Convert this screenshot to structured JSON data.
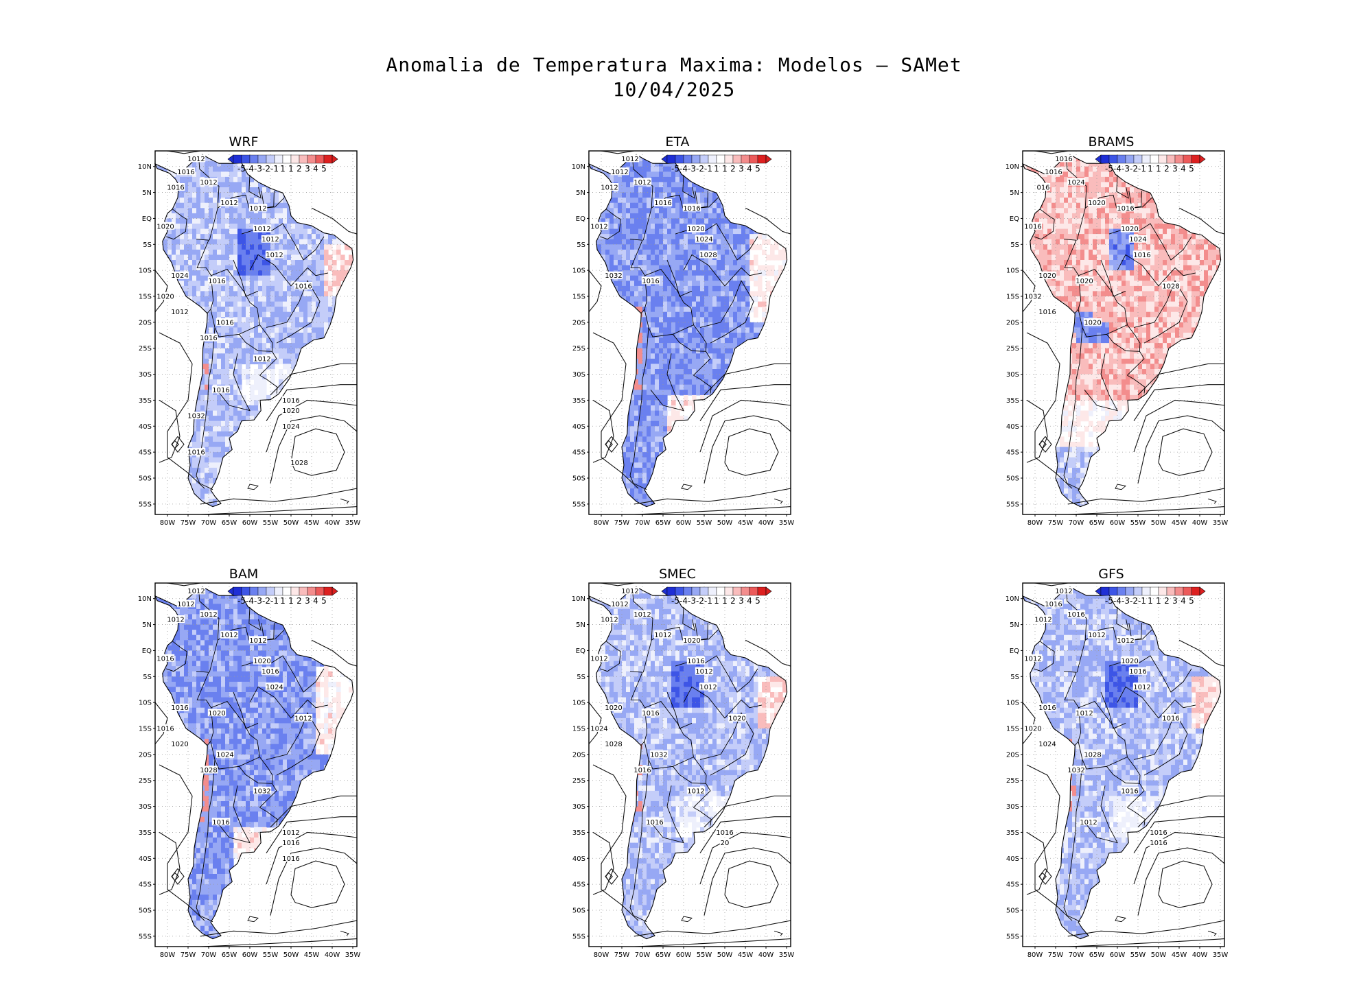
{
  "figure": {
    "title_line1": "Anomalia de Temperatura Maxima: Modelos – SAMet",
    "title_line2": "10/04/2025"
  },
  "axes": {
    "lat_ticks": [
      "10N",
      "5N",
      "EQ",
      "5S",
      "10S",
      "15S",
      "20S",
      "25S",
      "30S",
      "35S",
      "40S",
      "45S",
      "50S",
      "55S"
    ],
    "lon_ticks": [
      "80W",
      "75W",
      "70W",
      "65W",
      "60W",
      "55W",
      "50W",
      "45W",
      "40W",
      "35W"
    ]
  },
  "colorbar": {
    "labels": [
      "-5",
      "-4",
      "-3",
      "-2",
      "-1",
      "1",
      "1",
      "2",
      "3",
      "4",
      "5"
    ],
    "colors": [
      "#1f2fd6",
      "#3d55e6",
      "#6a80ef",
      "#97a8f4",
      "#c4cdf9",
      "#eef0fc",
      "#ffffff",
      "#fde8e8",
      "#f9bcbc",
      "#f38d8d",
      "#ec5a5a",
      "#dd2020"
    ]
  },
  "panels": [
    {
      "name": "WRF",
      "bias": "cool-moderate",
      "contour_labels": [
        "1012",
        "1016",
        "1016",
        "1012",
        "1012",
        "1020",
        "1012",
        "1012",
        "1012",
        "1012",
        "1024",
        "1016",
        "1016",
        "1020",
        "1012",
        "1016",
        "1016",
        "1012",
        "1016",
        "1016",
        "1020",
        "1024",
        "1028",
        "1032",
        "1016"
      ]
    },
    {
      "name": "ETA",
      "bias": "cool-strong",
      "contour_labels": [
        "1012",
        "1012",
        "1012",
        "1012",
        "1016",
        "1012",
        "1016",
        "1020",
        "1024",
        "1028",
        "1032",
        "1016"
      ]
    },
    {
      "name": "BRAMS",
      "bias": "warm",
      "contour_labels": [
        "1016",
        "1016",
        "016",
        "1024",
        "1020",
        "1016",
        "1016",
        "1020",
        "1024",
        "1016",
        "1020",
        "1020",
        "1028",
        "1032",
        "1016",
        "1020"
      ]
    },
    {
      "name": "BAM",
      "bias": "cool-strong",
      "contour_labels": [
        "1012",
        "1012",
        "1012",
        "1012",
        "1012",
        "1016",
        "1012",
        "1020",
        "1016",
        "1024",
        "1016",
        "1020",
        "1012",
        "1016",
        "1020",
        "1024",
        "1028",
        "1032",
        "1016",
        "1012",
        "1016",
        "1016"
      ]
    },
    {
      "name": "SMEC",
      "bias": "cool-moderate",
      "contour_labels": [
        "1012",
        "1012",
        "1012",
        "1012",
        "1012",
        "1012",
        "1020",
        "1016",
        "1012",
        "1012",
        "1020",
        "1016",
        "1020",
        "1024",
        "1028",
        "1032",
        "1016",
        "1012",
        "1016",
        "1016",
        "20"
      ]
    },
    {
      "name": "GFS",
      "bias": "cool-moderate",
      "contour_labels": [
        "1012",
        "1016",
        "1012",
        "1016",
        "1012",
        "1012",
        "1012",
        "1020",
        "1016",
        "1012",
        "1016",
        "1012",
        "1016",
        "1020",
        "1024",
        "1028",
        "1032",
        "1016",
        "1012",
        "1016",
        "1016"
      ]
    }
  ]
}
